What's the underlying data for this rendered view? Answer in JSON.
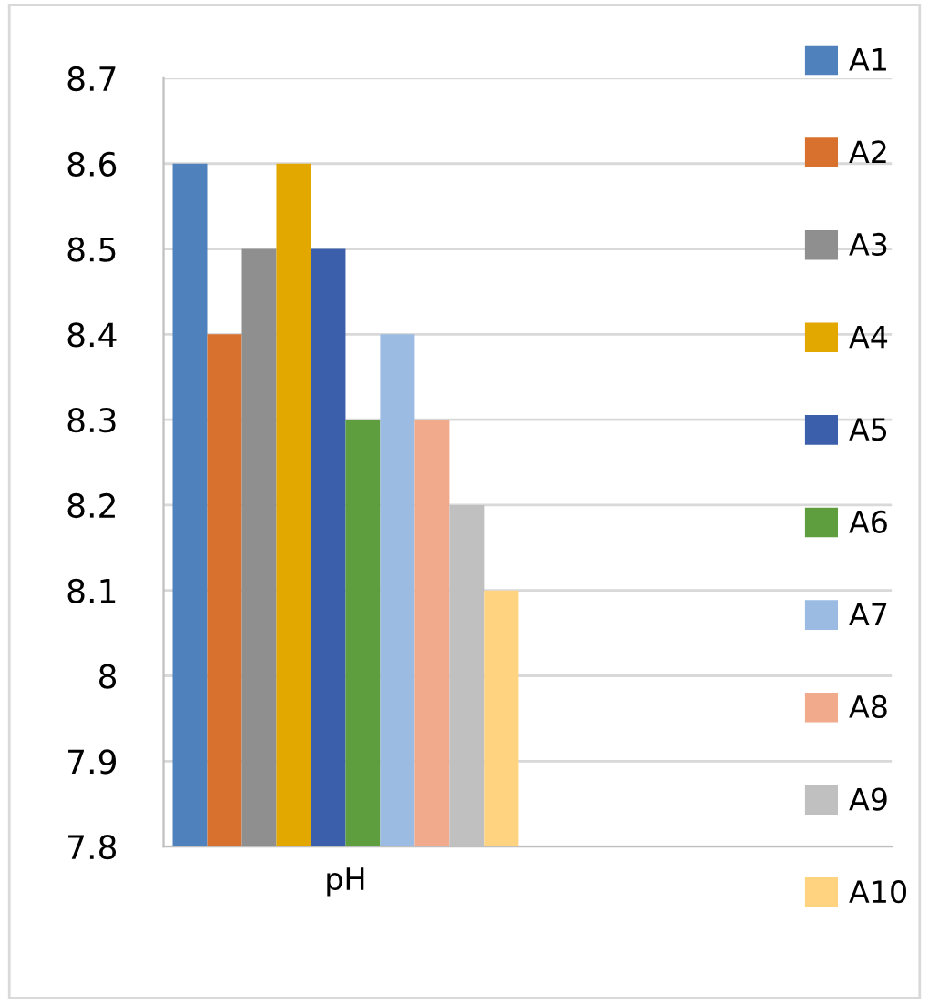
{
  "chart_data": {
    "type": "bar",
    "categories": [
      "pH",
      null
    ],
    "series": [
      {
        "name": "A1",
        "color": "#4f81bd",
        "values": [
          8.6,
          null
        ]
      },
      {
        "name": "A2",
        "color": "#d9712e",
        "values": [
          8.4,
          null
        ]
      },
      {
        "name": "A3",
        "color": "#8f8f8f",
        "values": [
          8.5,
          null
        ]
      },
      {
        "name": "A4",
        "color": "#e3a800",
        "values": [
          8.6,
          null
        ]
      },
      {
        "name": "A5",
        "color": "#3b5fab",
        "values": [
          8.5,
          null
        ]
      },
      {
        "name": "A6",
        "color": "#5f9e3f",
        "values": [
          8.3,
          null
        ]
      },
      {
        "name": "A7",
        "color": "#9bbbe3",
        "values": [
          8.4,
          null
        ]
      },
      {
        "name": "A8",
        "color": "#f1aa8b",
        "values": [
          8.3,
          null
        ]
      },
      {
        "name": "A9",
        "color": "#c0c0c0",
        "values": [
          8.2,
          null
        ]
      },
      {
        "name": "A10",
        "color": "#ffd37f",
        "values": [
          8.1,
          null
        ]
      }
    ],
    "ylim": [
      7.8,
      8.7
    ],
    "yticks": [
      7.8,
      7.9,
      {
        "value": 8.0,
        "label": "8"
      },
      8.1,
      8.2,
      8.3,
      8.4,
      8.5,
      8.6,
      8.7
    ],
    "grid": "y",
    "legend": "right"
  }
}
